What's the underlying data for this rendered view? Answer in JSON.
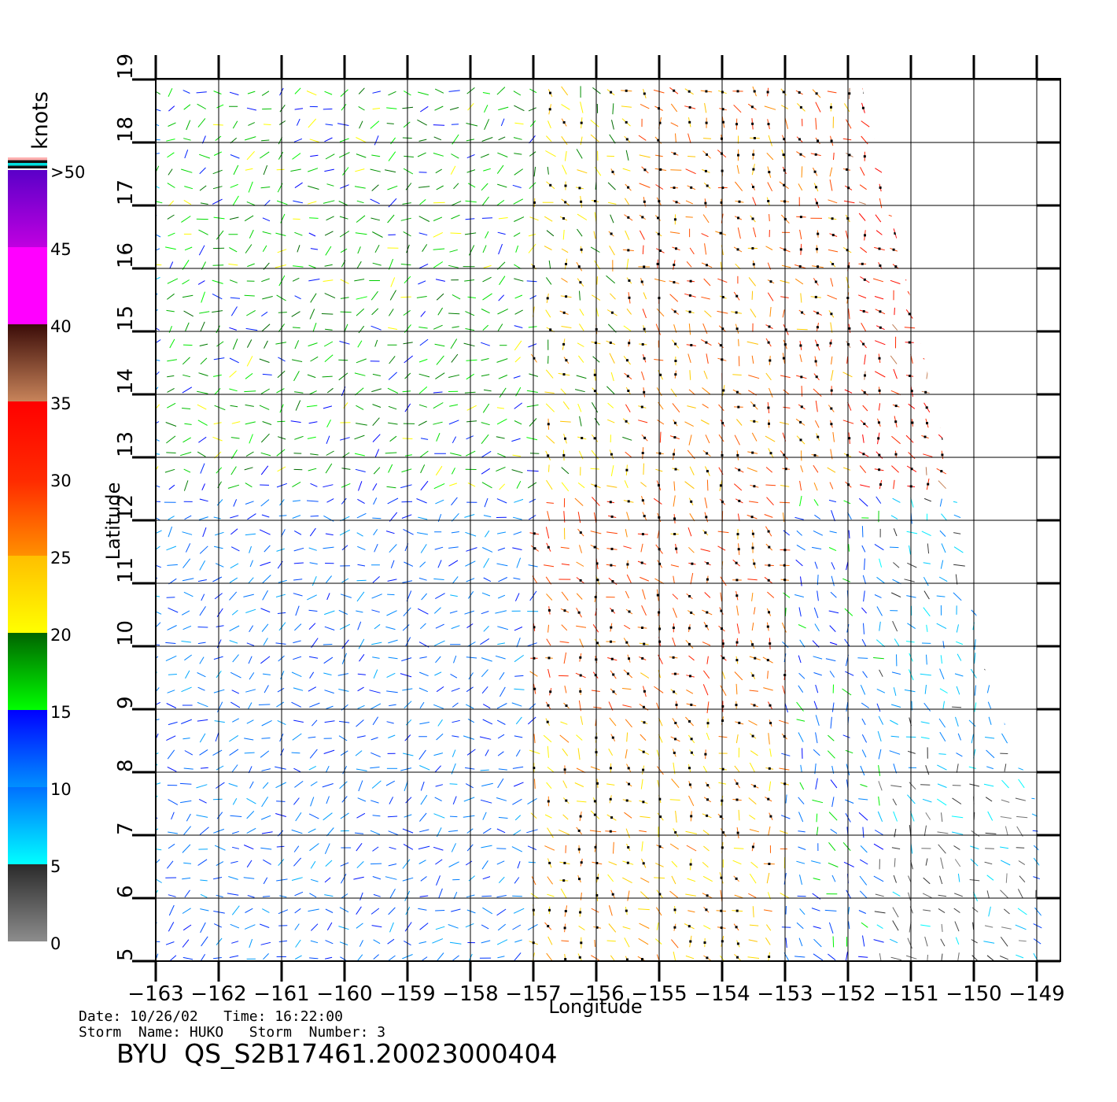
{
  "chart_data": {
    "type": "wind-vector-map",
    "xlabel": "Longitude",
    "ylabel": "Latitude",
    "xlim": [
      -163,
      -148.6
    ],
    "ylim": [
      5,
      19
    ],
    "x_ticks": [
      "−163",
      "−162",
      "−161",
      "−160",
      "−159",
      "−158",
      "−157",
      "−156",
      "−155",
      "−154",
      "−153",
      "−152",
      "−151",
      "−150",
      "−149"
    ],
    "y_ticks": [
      "5",
      "6",
      "7",
      "8",
      "9",
      "10",
      "11",
      "12",
      "13",
      "14",
      "15",
      "16",
      "17",
      "18",
      "19"
    ],
    "grid": true,
    "colorbar": {
      "title": "knots",
      "labels": [
        ">50",
        "45",
        "40",
        "35",
        "30",
        "25",
        "20",
        "15",
        "10",
        "5",
        "0"
      ],
      "label_values": [
        50,
        45,
        40,
        35,
        30,
        25,
        20,
        15,
        10,
        5,
        0
      ],
      "bands": [
        {
          "from": 0,
          "to": 5,
          "color_top": "#2a2a2a",
          "color_bottom": "#8c8c8c"
        },
        {
          "from": 5,
          "to": 10,
          "color_top": "#0070ff",
          "color_bottom": "#00ffff"
        },
        {
          "from": 10,
          "to": 15,
          "color_top": "#0000ff",
          "color_bottom": "#0090ff"
        },
        {
          "from": 15,
          "to": 20,
          "color_top": "#006400",
          "color_bottom": "#00ff00"
        },
        {
          "from": 20,
          "to": 25,
          "color_top": "#ffbf00",
          "color_bottom": "#ffff00"
        },
        {
          "from": 25,
          "to": 30,
          "color_top": "#ff2800",
          "color_bottom": "#ff9000"
        },
        {
          "from": 30,
          "to": 35,
          "color_top": "#ff0000",
          "color_bottom": "#ff2a00"
        },
        {
          "from": 35,
          "to": 40,
          "color_top": "#3b0c08",
          "color_bottom": "#c8845a"
        },
        {
          "from": 40,
          "to": 45,
          "color_top": "#ff00ff",
          "color_bottom": "#ff00ff"
        },
        {
          "from": 45,
          "to": 50,
          "color_top": "#5a00c8",
          "color_bottom": "#c000e0"
        }
      ],
      "top_swatches": [
        "#ffb0b0",
        "#111111",
        "#00e0e0",
        "#111111"
      ]
    },
    "swath_boundary": [
      [
        -163,
        19
      ],
      [
        -151.8,
        19
      ],
      [
        -150.2,
        12
      ],
      [
        -149.8,
        9.5
      ],
      [
        -149.0,
        7.5
      ],
      [
        -148.9,
        5
      ],
      [
        -163,
        5
      ]
    ],
    "wind_regions": [
      {
        "lon": [
          -163,
          -157
        ],
        "lat": [
          5,
          12.5
        ],
        "speed": 11
      },
      {
        "lon": [
          -163,
          -157
        ],
        "lat": [
          12.5,
          19
        ],
        "speed": 17
      },
      {
        "lon": [
          -157,
          -155.5
        ],
        "lat": [
          12.5,
          19
        ],
        "speed": 22
      },
      {
        "lon": [
          -155.5,
          -152
        ],
        "lat": [
          12.5,
          19
        ],
        "speed": 27
      },
      {
        "lon": [
          -152,
          -150
        ],
        "lat": [
          12.5,
          19
        ],
        "speed": 32
      },
      {
        "lon": [
          -157,
          -153
        ],
        "lat": [
          9,
          12.5
        ],
        "speed": 28
      },
      {
        "lon": [
          -157,
          -153
        ],
        "lat": [
          5,
          9
        ],
        "speed": 24
      },
      {
        "lon": [
          -153,
          -151.5
        ],
        "lat": [
          5,
          12.5
        ],
        "speed": 13
      },
      {
        "lon": [
          -151.5,
          -149
        ],
        "lat": [
          8,
          12.5
        ],
        "speed": 7
      },
      {
        "lon": [
          -151.5,
          -149
        ],
        "lat": [
          5,
          8
        ],
        "speed": 4
      }
    ]
  },
  "footer": {
    "meta_line1": "Date: 10/26/02   Time: 16:22:00",
    "meta_line2": "Storm  Name: HUKO   Storm  Number: 3",
    "file_name": "BYU  QS_S2B17461.20023000404"
  }
}
